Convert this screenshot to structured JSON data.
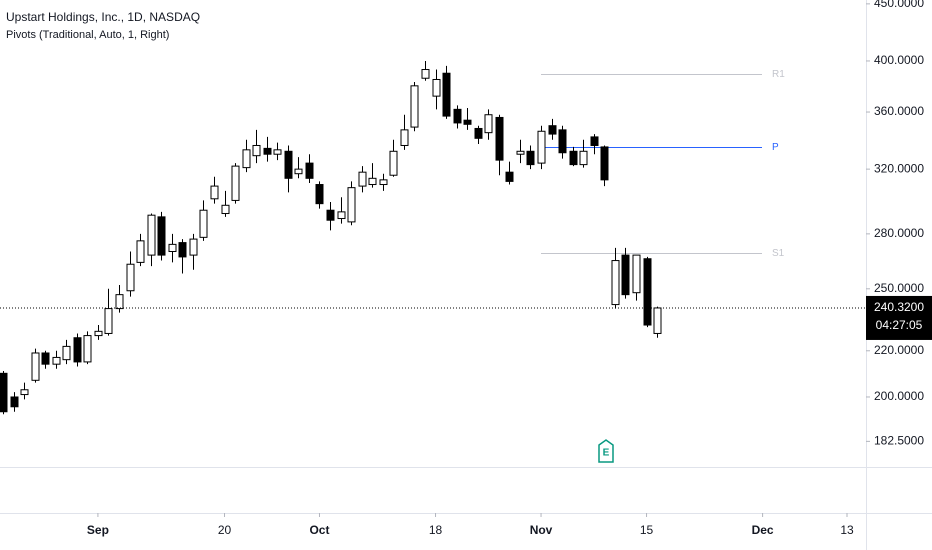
{
  "chart_data": {
    "type": "candlestick",
    "title": "Upstart Holdings, Inc., 1D, NASDAQ",
    "subtitle": "Pivots (Traditional, Auto, 1, Right)",
    "open": [
      210,
      200,
      201,
      207,
      219,
      214,
      216,
      226,
      215,
      227,
      228,
      240,
      249,
      264,
      268,
      290,
      270,
      275,
      268,
      278,
      301,
      292,
      300,
      321,
      329,
      334,
      330,
      332,
      317,
      324,
      310,
      294,
      289,
      287,
      309,
      310,
      310,
      316,
      336,
      349,
      386,
      372,
      390,
      362,
      354,
      348,
      345,
      356,
      318,
      330,
      332,
      324,
      350,
      347,
      332,
      323,
      342,
      335,
      242,
      268,
      248,
      266,
      228
    ],
    "high": [
      211,
      202,
      206,
      221,
      220,
      220,
      225,
      228,
      229,
      232,
      250,
      252,
      270,
      280,
      292,
      293,
      280,
      277,
      280,
      300,
      315,
      306,
      324,
      340,
      347,
      342,
      338,
      336,
      328,
      330,
      312,
      299,
      302,
      312,
      322,
      324,
      317,
      340,
      358,
      383,
      400,
      393,
      396,
      365,
      363,
      350,
      362,
      358,
      325,
      340,
      336,
      350,
      355,
      350,
      335,
      340,
      344,
      336,
      272,
      272,
      268,
      267,
      241
    ],
    "low": [
      193,
      194,
      199,
      206,
      212,
      212,
      214,
      213,
      214,
      225,
      227,
      238,
      246,
      262,
      262,
      265,
      264,
      258,
      260,
      276,
      298,
      290,
      298,
      318,
      324,
      325,
      326,
      305,
      314,
      311,
      295,
      282,
      286,
      285,
      305,
      308,
      306,
      315,
      333,
      346,
      384,
      362,
      355,
      348,
      347,
      337,
      340,
      316,
      310,
      324,
      320,
      320,
      340,
      327,
      322,
      321,
      330,
      309,
      240,
      245,
      244,
      231,
      226
    ],
    "close": [
      194,
      196,
      203,
      219,
      214,
      217,
      222,
      215,
      227,
      229,
      240,
      247,
      263,
      276,
      291,
      268,
      274,
      267,
      277,
      294,
      309,
      297,
      322,
      333,
      336,
      330,
      333,
      314,
      320,
      314,
      298,
      288,
      293,
      308,
      318,
      314,
      313,
      332,
      347,
      380,
      393,
      385,
      357,
      352,
      351,
      341,
      358,
      326,
      312,
      332,
      323,
      346,
      344,
      331,
      323,
      332,
      336,
      313,
      265,
      247,
      268,
      232,
      240.32
    ],
    "up_color": "#ffffff",
    "down_color": "#000000",
    "border_color": "#000000",
    "xlim": [
      -0.28,
      81.8
    ],
    "xticks": [
      {
        "value": 9,
        "label": "Sep"
      },
      {
        "value": 21,
        "label": "20"
      },
      {
        "value": 30,
        "label": "Oct"
      },
      {
        "value": 41,
        "label": "18"
      },
      {
        "value": 51,
        "label": "Nov"
      },
      {
        "value": 61,
        "label": "15"
      },
      {
        "value": 72,
        "label": "Dec"
      },
      {
        "value": 80,
        "label": "13"
      }
    ],
    "ylim": [
      173.1,
      453.6
    ],
    "log_scale": true,
    "grid": false,
    "yticks": [
      {
        "value": 450,
        "label": "450.0000"
      },
      {
        "value": 400,
        "label": "400.0000"
      },
      {
        "value": 360,
        "label": "360.0000"
      },
      {
        "value": 320,
        "label": "320.0000"
      },
      {
        "value": 280,
        "label": "280.0000"
      },
      {
        "value": 250,
        "label": "250.0000"
      },
      {
        "value": 220,
        "label": "220.0000"
      },
      {
        "value": 200,
        "label": "200.0000"
      },
      {
        "value": 182.5,
        "label": "182.5000"
      }
    ],
    "pivots": [
      {
        "name": "R1",
        "value": 389,
        "color": "#c3c5cc"
      },
      {
        "name": "P",
        "value": 335,
        "color": "#2962ff"
      },
      {
        "name": "S1",
        "value": 269,
        "color": "#c3c5cc"
      }
    ],
    "last_price": {
      "value": 240.32,
      "label": "240.3200"
    },
    "countdown": "04:27:05",
    "earnings_marker": "E"
  }
}
